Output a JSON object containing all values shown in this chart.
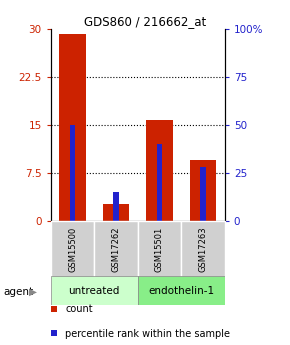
{
  "title": "GDS860 / 216662_at",
  "samples": [
    "GSM15500",
    "GSM17262",
    "GSM15501",
    "GSM17263"
  ],
  "count_values": [
    29.2,
    2.7,
    15.8,
    9.5
  ],
  "percentile_values": [
    50,
    15,
    40,
    28
  ],
  "ylim_left": [
    0,
    30
  ],
  "ylim_right": [
    0,
    100
  ],
  "yticks_left": [
    0,
    7.5,
    15,
    22.5,
    30
  ],
  "yticks_right": [
    0,
    25,
    50,
    75,
    100
  ],
  "yticklabels_left": [
    "0",
    "7.5",
    "15",
    "22.5",
    "30"
  ],
  "yticklabels_right": [
    "0",
    "25",
    "50",
    "75",
    "100%"
  ],
  "bar_color": "#cc2200",
  "pct_color": "#2222cc",
  "untreated_color": "#ccffcc",
  "endothelin_color": "#88ee88",
  "agent_label": "agent",
  "legend_count": "count",
  "legend_pct": "percentile rank within the sample"
}
